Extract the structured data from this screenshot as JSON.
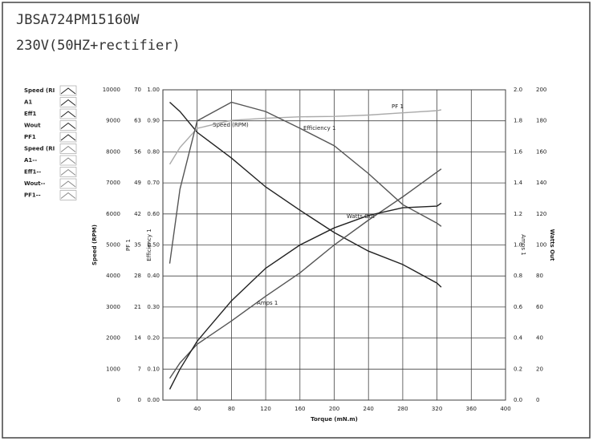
{
  "header": {
    "title": "JBSA724PM15160W",
    "subtitle": "230V(50HZ+rectifier)"
  },
  "chart_data": {
    "type": "line",
    "x_label": "Torque (mN.m)",
    "x": [
      8,
      20,
      40,
      80,
      120,
      160,
      200,
      240,
      280,
      320,
      325
    ],
    "xlim": [
      0,
      400
    ],
    "xticks": [
      40,
      80,
      120,
      160,
      200,
      240,
      280,
      320,
      360,
      400
    ],
    "grid": true,
    "y_axes": [
      {
        "label": "Speed (RPM)",
        "side": "left",
        "lim": [
          0,
          10000
        ],
        "ticks": [
          0,
          1000,
          2000,
          3000,
          4000,
          5000,
          6000,
          7000,
          8000,
          9000,
          10000
        ]
      },
      {
        "label": "PF 1",
        "side": "left",
        "lim": [
          0,
          70
        ],
        "ticks": [
          0,
          7,
          14,
          21,
          28,
          35,
          42,
          49,
          56,
          63,
          70
        ]
      },
      {
        "label": "Efficiency 1",
        "side": "left",
        "lim": [
          0,
          1
        ],
        "ticks": [
          {
            "value": 0,
            "label": "0.00"
          },
          {
            "value": 0.1,
            "label": "0.10"
          },
          {
            "value": 0.2,
            "label": "0.20"
          },
          {
            "value": 0.3,
            "label": "0.30"
          },
          {
            "value": 0.4,
            "label": "0.40"
          },
          {
            "value": 0.5,
            "label": "0.50"
          },
          {
            "value": 0.6,
            "label": "0.60"
          },
          {
            "value": 0.7,
            "label": "0.70"
          },
          {
            "value": 0.8,
            "label": "0.80"
          },
          {
            "value": 0.9,
            "label": "0.90"
          },
          {
            "value": 1,
            "label": "1.00"
          }
        ]
      },
      {
        "label": "Amps 1",
        "side": "right",
        "lim": [
          0,
          2
        ],
        "ticks": [
          {
            "value": 0,
            "label": "0.0"
          },
          0.2,
          0.4,
          0.6,
          0.8,
          {
            "value": 1,
            "label": "1.0"
          },
          1.2,
          1.4,
          1.6,
          1.8,
          {
            "value": 2,
            "label": "2.0"
          }
        ]
      },
      {
        "label": "Watts Out",
        "side": "right",
        "lim": [
          0,
          200
        ],
        "ticks": [
          0,
          20,
          40,
          60,
          80,
          100,
          120,
          140,
          160,
          180,
          200
        ]
      }
    ],
    "series": [
      {
        "name": "Speed (RPM)",
        "axis": 0,
        "color": "#222222",
        "values": [
          9600,
          9300,
          8630,
          7800,
          6870,
          6120,
          5400,
          4800,
          4370,
          3770,
          3640
        ]
      },
      {
        "name": "PF 1",
        "axis": 1,
        "color": "#aaaaaa",
        "values": [
          53.2,
          57,
          61.3,
          63.1,
          63.6,
          63.9,
          64,
          64.3,
          64.8,
          65.3,
          65.5
        ]
      },
      {
        "name": "Efficiency 1",
        "axis": 2,
        "color": "#555555",
        "values": [
          0.44,
          0.68,
          0.9,
          0.96,
          0.93,
          0.876,
          0.82,
          0.73,
          0.63,
          0.57,
          0.56
        ]
      },
      {
        "name": "Amps 1",
        "axis": 3,
        "color": "#555555",
        "values": [
          0.14,
          0.24,
          0.36,
          0.51,
          0.67,
          0.82,
          1.0,
          1.16,
          1.31,
          1.47,
          1.49
        ]
      },
      {
        "name": "Watts Out",
        "axis": 4,
        "color": "#222222",
        "values": [
          7,
          20,
          38,
          64,
          85,
          100,
          111,
          119,
          124,
          125,
          127
        ]
      }
    ],
    "legend_entries": [
      "Speed (RI",
      "A1",
      "Eff1",
      "Wout",
      "PF1",
      "Speed (RI",
      "A1--",
      "Eff1--",
      "Wout--",
      "PF1--"
    ]
  }
}
